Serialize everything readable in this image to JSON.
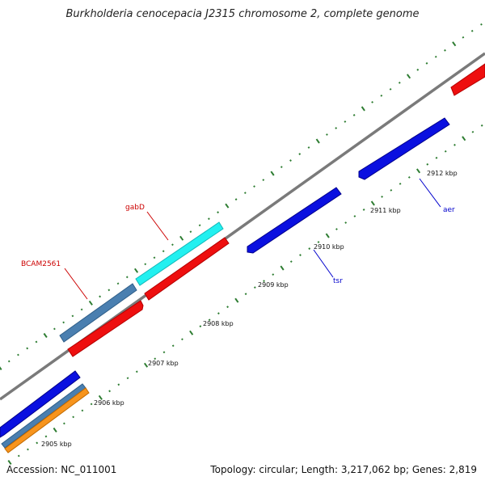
{
  "title": "Burkholderia cenocepacia J2315 chromosome 2, complete genome",
  "footer": {
    "accession": "Accession: NC_011001",
    "summary": "Topology: circular; Length: 3,217,062 bp; Genes: 2,819"
  },
  "colors": {
    "backbone": "#7a7a7a",
    "tick": "#2e7d32",
    "blue": "#0a10e0",
    "red": "#ee0f0f",
    "cyan": "#22f0f0",
    "steel": "#4a7fb0",
    "orange": "#f7941d",
    "label_red": "#cc0000",
    "label_blue": "#0000cc"
  },
  "scale": {
    "unit": "kbp",
    "labels": [
      "2905 kbp",
      "2906 kbp",
      "2907 kbp",
      "2908 kbp",
      "2909 kbp",
      "2910 kbp",
      "2911 kbp",
      "2912 kbp"
    ]
  },
  "gene_labels": {
    "gabD": "gabD",
    "bcam2561": "BCAM2561",
    "tsr": "tsr",
    "aer": "aer"
  }
}
